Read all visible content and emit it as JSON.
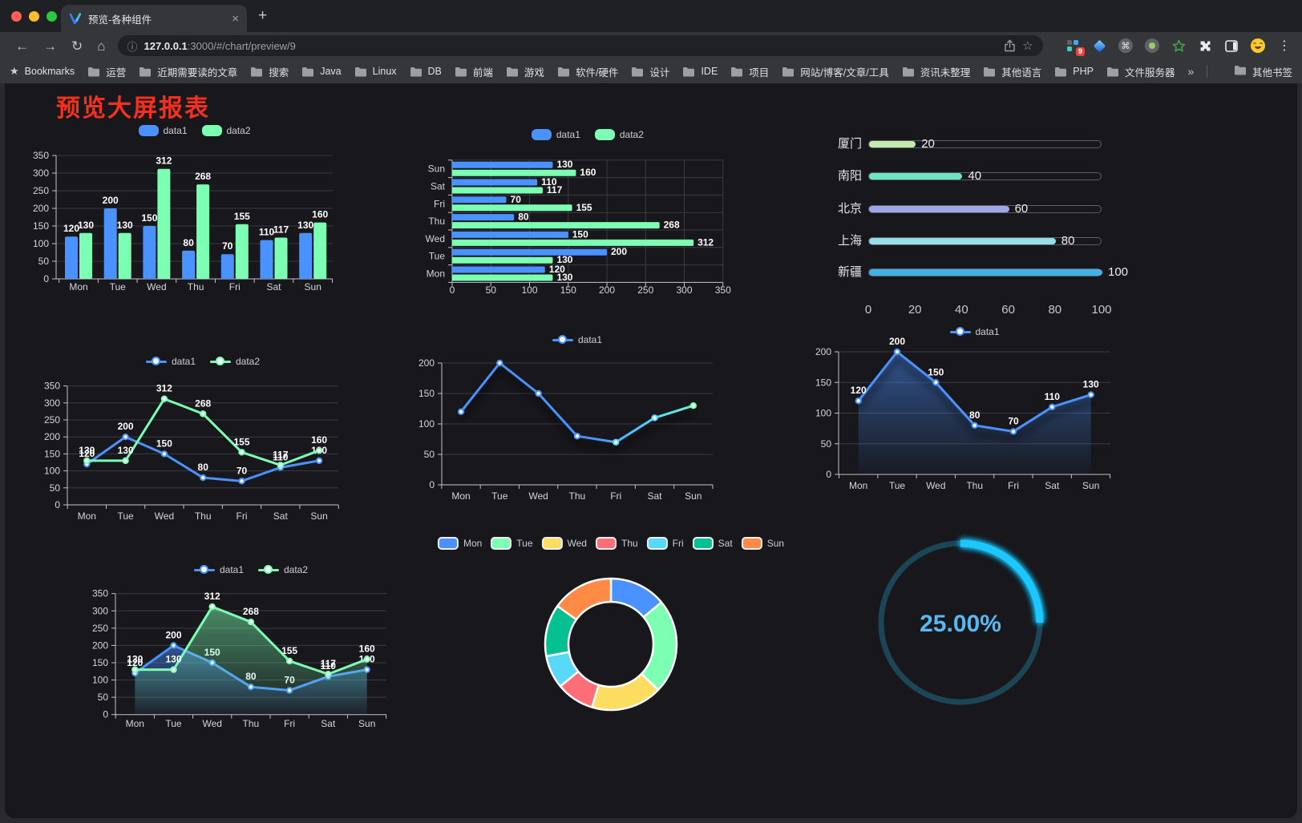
{
  "browser": {
    "tab": {
      "title": "预览-各种组件",
      "close_icon": "×",
      "new_tab_icon": "+"
    },
    "nav": {
      "back": "←",
      "forward": "→",
      "reload": "↻",
      "home": "⌂"
    },
    "url": {
      "info_icon": "ⓘ",
      "host": "127.0.0.1",
      "rest": ":3000/#/chart/preview/9"
    },
    "omnibox": {
      "star_icon": "☆"
    },
    "extensions": {
      "badge_count": "9",
      "command_symbol": "⌘",
      "menu_icon": "⋮"
    },
    "bookmarks_bar": {
      "lead_icon": "★",
      "lead_label": "Bookmarks",
      "folders": [
        "运营",
        "近期需要读的文章",
        "搜索",
        "Java",
        "Linux",
        "DB",
        "前端",
        "游戏",
        "软件/硬件",
        "设计",
        "IDE",
        "项目",
        "网站/博客/文章/工具",
        "资讯未整理",
        "其他语言",
        "PHP",
        "文件服务器"
      ],
      "overflow_icon": "»",
      "other_bookmarks": "其他书签"
    }
  },
  "page": {
    "title": "预览大屏报表",
    "title_color": "#f5311d"
  },
  "chart_data": [
    {
      "id": "bar-vertical",
      "type": "bar",
      "legend_position": "top",
      "value_labels": true,
      "categories": [
        "Mon",
        "Tue",
        "Wed",
        "Thu",
        "Fri",
        "Sat",
        "Sun"
      ],
      "series": [
        {
          "name": "data1",
          "color": "#4992ff",
          "values": [
            120,
            200,
            150,
            80,
            70,
            110,
            130
          ]
        },
        {
          "name": "data2",
          "color": "#7cffb2",
          "values": [
            130,
            130,
            312,
            268,
            155,
            117,
            160
          ]
        }
      ],
      "ylim": [
        0,
        350
      ],
      "ytick_step": 50
    },
    {
      "id": "bar-horizontal",
      "type": "bar-horizontal",
      "legend_position": "top",
      "value_labels": true,
      "categories": [
        "Mon",
        "Tue",
        "Wed",
        "Thu",
        "Fri",
        "Sat",
        "Sun"
      ],
      "categories_top_to_bottom": [
        "Sun",
        "Sat",
        "Fri",
        "Thu",
        "Wed",
        "Tue",
        "Mon"
      ],
      "series": [
        {
          "name": "data1",
          "color": "#4992ff",
          "values": [
            120,
            200,
            150,
            80,
            70,
            110,
            130
          ]
        },
        {
          "name": "data2",
          "color": "#7cffb2",
          "values": [
            130,
            130,
            312,
            268,
            155,
            117,
            160
          ]
        }
      ],
      "xlim": [
        0,
        350
      ],
      "xtick_step": 50
    },
    {
      "id": "city-progress",
      "type": "progress",
      "xlim": [
        0,
        100
      ],
      "items": [
        {
          "label": "厦门",
          "value": 20,
          "color": "#c4ebad"
        },
        {
          "label": "南阳",
          "value": 40,
          "color": "#6be6c1"
        },
        {
          "label": "北京",
          "value": 60,
          "color": "#a0a7e6"
        },
        {
          "label": "上海",
          "value": 80,
          "color": "#96dee8"
        },
        {
          "label": "新疆",
          "value": 100,
          "color": "#3fb1e3"
        }
      ],
      "axis_ticks": [
        0,
        20,
        40,
        60,
        80,
        100
      ]
    },
    {
      "id": "line-two-series",
      "type": "line",
      "legend_position": "top",
      "value_labels": true,
      "categories": [
        "Mon",
        "Tue",
        "Wed",
        "Thu",
        "Fri",
        "Sat",
        "Sun"
      ],
      "series": [
        {
          "name": "data1",
          "color": "#4992ff",
          "values": [
            120,
            200,
            150,
            80,
            70,
            110,
            130
          ]
        },
        {
          "name": "data2",
          "color": "#7cffb2",
          "values": [
            130,
            130,
            312,
            268,
            155,
            117,
            160
          ]
        }
      ],
      "ylim": [
        0,
        350
      ],
      "ytick_step": 50
    },
    {
      "id": "line-gradient",
      "type": "line",
      "legend_position": "top",
      "value_labels": false,
      "shadow": true,
      "categories": [
        "Mon",
        "Tue",
        "Wed",
        "Thu",
        "Fri",
        "Sat",
        "Sun"
      ],
      "series": [
        {
          "name": "data1",
          "gradient": [
            "#4992ff",
            "#58d9f9",
            "#7cffb2"
          ],
          "color": "#4992ff",
          "values": [
            120,
            200,
            150,
            80,
            70,
            110,
            130
          ]
        }
      ],
      "ylim": [
        0,
        200
      ],
      "ytick_step": 50
    },
    {
      "id": "area-single",
      "type": "area",
      "legend_position": "top",
      "value_labels": true,
      "shadow": true,
      "categories": [
        "Mon",
        "Tue",
        "Wed",
        "Thu",
        "Fri",
        "Sat",
        "Sun"
      ],
      "series": [
        {
          "name": "data1",
          "color": "#4992ff",
          "values": [
            120,
            200,
            150,
            80,
            70,
            110,
            130
          ]
        }
      ],
      "ylim": [
        0,
        200
      ],
      "ytick_step": 50
    },
    {
      "id": "area-two-series",
      "type": "area",
      "legend_position": "top",
      "value_labels": true,
      "categories": [
        "Mon",
        "Tue",
        "Wed",
        "Thu",
        "Fri",
        "Sat",
        "Sun"
      ],
      "series": [
        {
          "name": "data1",
          "color": "#4992ff",
          "values": [
            120,
            200,
            150,
            80,
            70,
            110,
            130
          ]
        },
        {
          "name": "data2",
          "color": "#7cffb2",
          "values": [
            130,
            130,
            312,
            268,
            155,
            117,
            160
          ]
        }
      ],
      "ylim": [
        0,
        350
      ],
      "ytick_step": 50
    },
    {
      "id": "weekday-donut",
      "type": "pie",
      "donut": true,
      "legend_position": "top",
      "items": [
        {
          "label": "Mon",
          "value": 120,
          "color": "#4992ff"
        },
        {
          "label": "Tue",
          "value": 200,
          "color": "#7cffb2"
        },
        {
          "label": "Wed",
          "value": 150,
          "color": "#fddd60"
        },
        {
          "label": "Thu",
          "value": 80,
          "color": "#ff6e76"
        },
        {
          "label": "Fri",
          "value": 70,
          "color": "#58d9f9"
        },
        {
          "label": "Sat",
          "value": 110,
          "color": "#05c091"
        },
        {
          "label": "Sun",
          "value": 130,
          "color": "#ff8a45"
        }
      ]
    },
    {
      "id": "percent-gauge",
      "type": "gauge",
      "value": 25,
      "display": "25.00%",
      "color": "#1fc7ff",
      "track_color": "#1c4555",
      "text_color": "#58b9f2"
    }
  ]
}
